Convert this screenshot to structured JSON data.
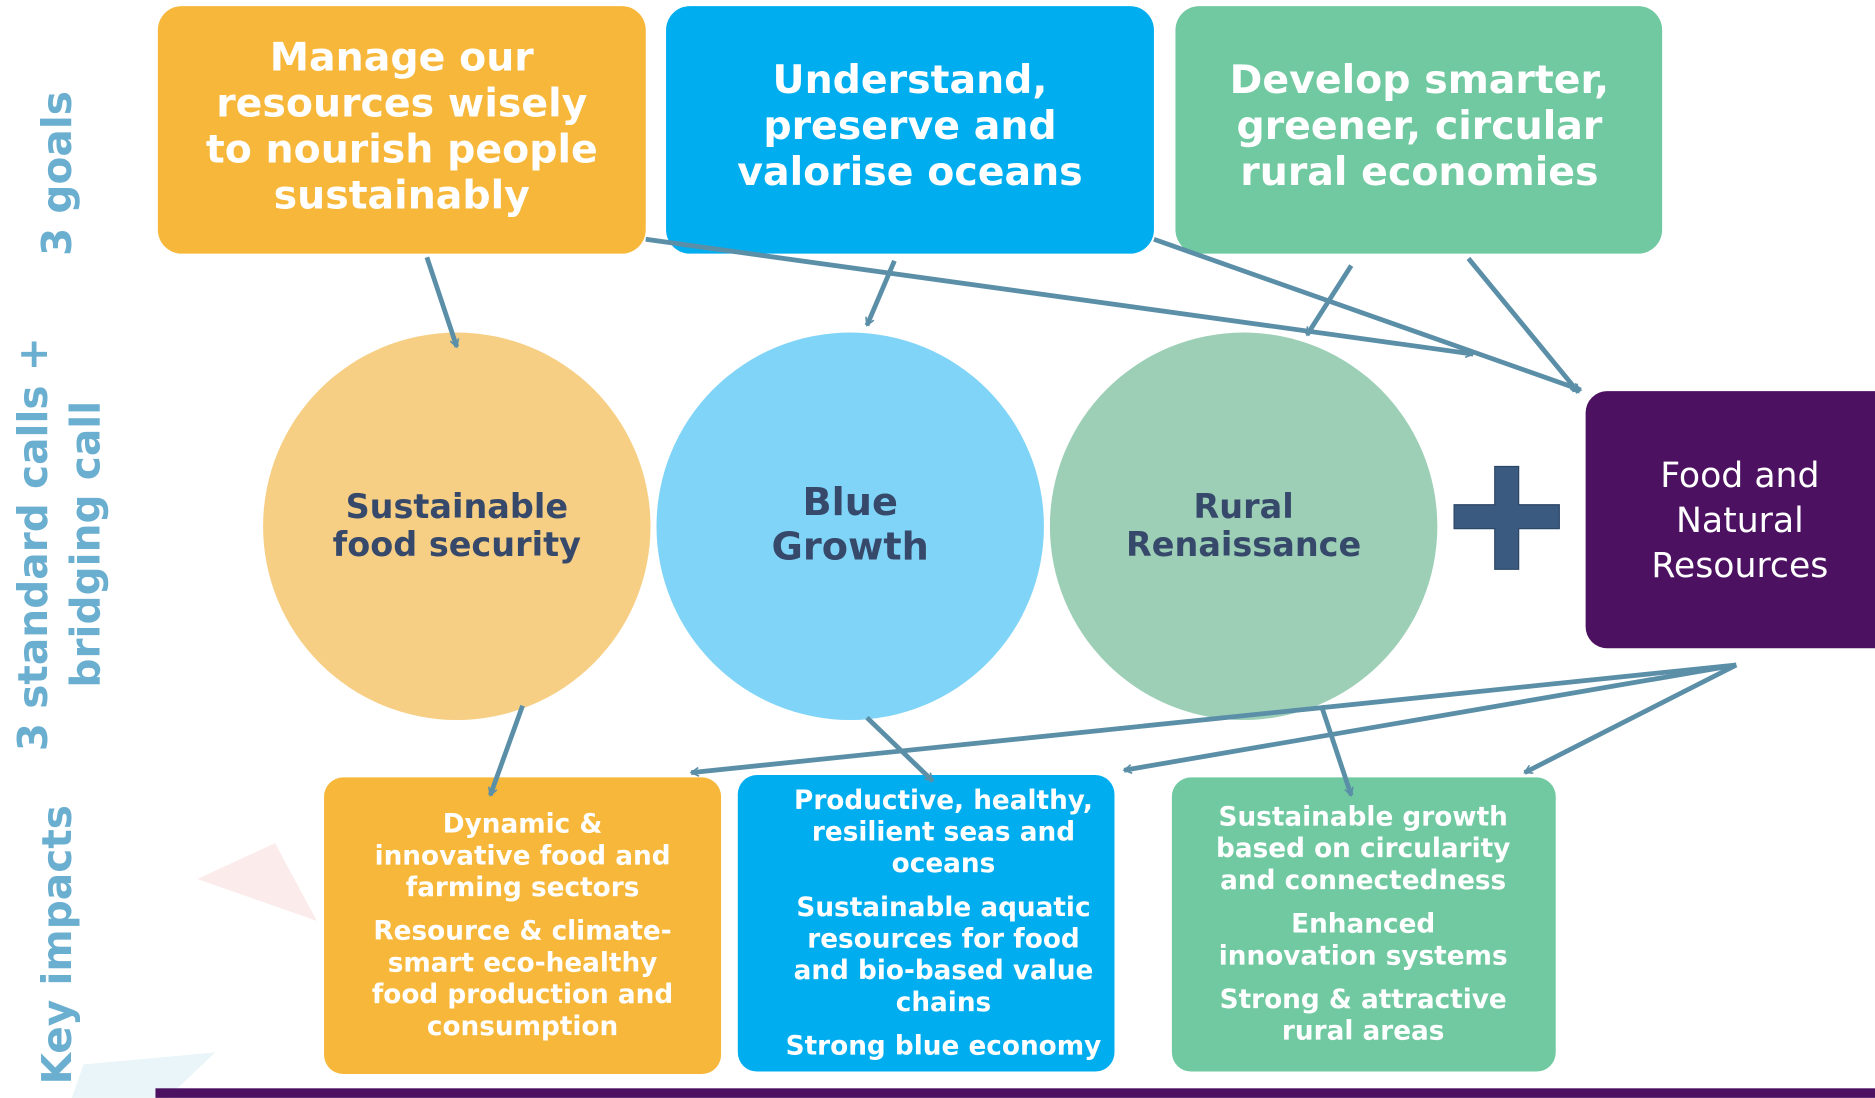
{
  "side_labels": {
    "goals": [
      "3 goals"
    ],
    "calls": [
      "3 standard calls +",
      "bridging call"
    ],
    "impacts": [
      "Key impacts"
    ]
  },
  "goals": [
    {
      "lines": [
        "Manage our",
        "resources wisely",
        "to nourish people",
        "sustainably"
      ]
    },
    {
      "lines": [
        "Understand,",
        "preserve and",
        "valorise oceans"
      ]
    },
    {
      "lines": [
        "Develop smarter,",
        "greener, circular",
        "rural economies"
      ]
    }
  ],
  "calls": [
    {
      "lines": [
        "Sustainable",
        "food security"
      ]
    },
    {
      "lines": [
        "Blue",
        "Growth"
      ]
    },
    {
      "lines": [
        "Rural",
        "Renaissance"
      ]
    }
  ],
  "bridging_call": {
    "lines": [
      "Food and",
      "Natural",
      "Resources"
    ]
  },
  "impacts": [
    {
      "items": [
        [
          "Dynamic &",
          "innovative food and",
          "farming sectors"
        ],
        [
          "Resource & climate-",
          "smart eco-healthy",
          "food production and",
          "consumption"
        ]
      ]
    },
    {
      "items": [
        [
          "Productive, healthy,",
          "resilient seas and",
          "oceans"
        ],
        [
          "Sustainable aquatic",
          "resources for food",
          "and bio-based value",
          "chains"
        ],
        [
          "Strong blue economy"
        ]
      ]
    },
    {
      "items": [
        [
          "Sustainable growth",
          "based on circularity",
          "and connectedness"
        ],
        [
          "Enhanced",
          "innovation systems"
        ],
        [
          "Strong & attractive",
          "rural areas"
        ]
      ]
    }
  ]
}
